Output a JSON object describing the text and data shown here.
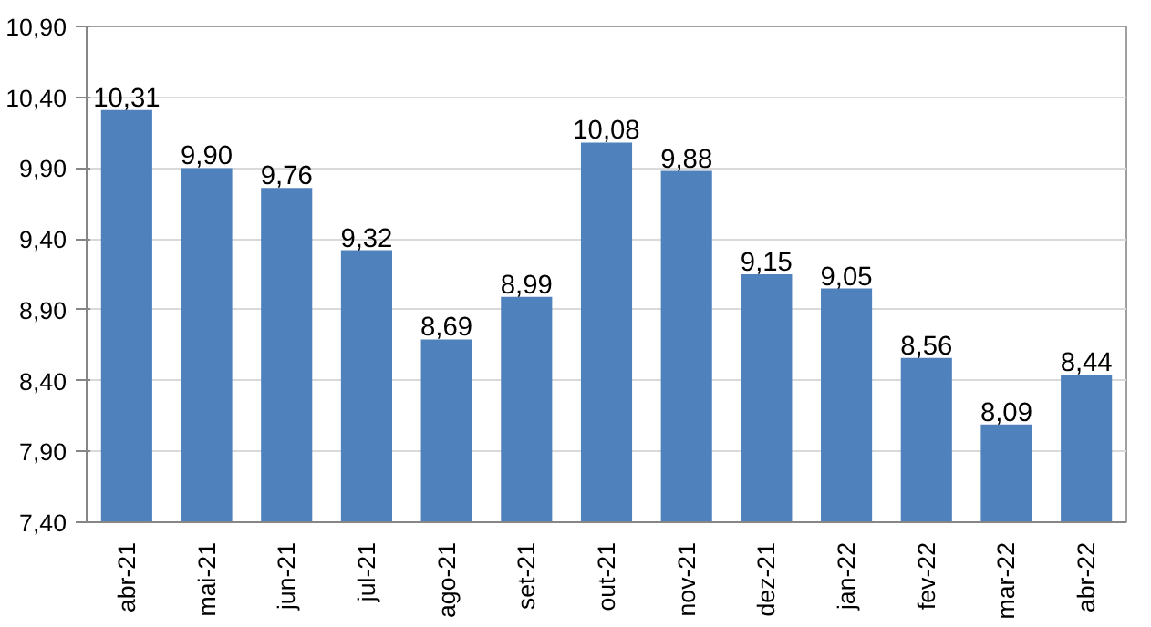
{
  "chart_data": {
    "type": "bar",
    "categories": [
      "abr-21",
      "mai-21",
      "jun-21",
      "jul-21",
      "ago-21",
      "set-21",
      "out-21",
      "nov-21",
      "dez-21",
      "jan-22",
      "fev-22",
      "mar-22",
      "abr-22"
    ],
    "values": [
      10.31,
      9.9,
      9.76,
      9.32,
      8.69,
      8.99,
      10.08,
      9.88,
      9.15,
      9.05,
      8.56,
      8.09,
      8.44
    ],
    "value_labels": [
      "10,31",
      "9,90",
      "9,76",
      "9,32",
      "8,69",
      "8,99",
      "10,08",
      "9,88",
      "9,15",
      "9,05",
      "8,56",
      "8,09",
      "8,44"
    ],
    "color": "#4f81bd",
    "ylim": [
      7.4,
      10.9
    ],
    "yticks": [
      {
        "value": 7.4,
        "label": "7,40"
      },
      {
        "value": 7.9,
        "label": "7,90"
      },
      {
        "value": 8.4,
        "label": "8,40"
      },
      {
        "value": 8.9,
        "label": "8,90"
      },
      {
        "value": 9.4,
        "label": "9,40"
      },
      {
        "value": 9.9,
        "label": "9,90"
      },
      {
        "value": 10.4,
        "label": "10,40"
      },
      {
        "value": 10.9,
        "label": "10,90"
      }
    ],
    "grid": "y"
  }
}
